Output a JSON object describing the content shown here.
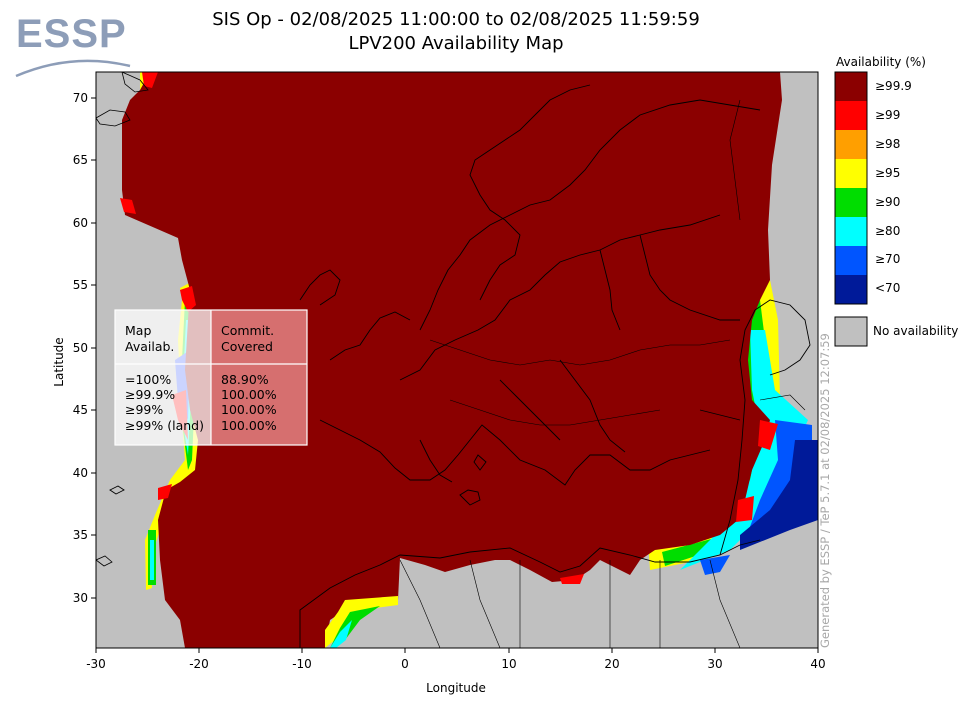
{
  "logo": {
    "text": "ESSP"
  },
  "title": {
    "line1": "SIS Op - 02/08/2025 11:00:00 to 02/08/2025 11:59:59",
    "line2": "LPV200 Availability Map"
  },
  "axes": {
    "x_label": "Longitude",
    "y_label": "Latitude",
    "x_ticks": [
      "-30",
      "-20",
      "-10",
      "0",
      "10",
      "20",
      "30",
      "40"
    ],
    "y_ticks": [
      "70",
      "65",
      "60",
      "55",
      "50",
      "45",
      "40",
      "35",
      "30"
    ],
    "x_range": [
      -30,
      40
    ],
    "y_range": [
      26,
      72
    ]
  },
  "legend": {
    "title": "Availability (%)",
    "items": [
      {
        "label": "≥99.9",
        "color": "#8b0000"
      },
      {
        "label": "≥99",
        "color": "#ff0000"
      },
      {
        "label": "≥98",
        "color": "#ff9f00"
      },
      {
        "label": "≥95",
        "color": "#ffff00"
      },
      {
        "label": "≥90",
        "color": "#00dd00"
      },
      {
        "label": "≥80",
        "color": "#00ffff"
      },
      {
        "label": "≥70",
        "color": "#0055ff"
      },
      {
        "label": "<70",
        "color": "#001a99"
      }
    ],
    "no_availability": {
      "label": "No availability",
      "color": "#c0c0c0"
    }
  },
  "stats_table": {
    "col1_header": "Map\nAvailab.",
    "col2_header": "Commit.\nCovered",
    "rows": [
      {
        "availability": "=100%",
        "covered": "88.90%"
      },
      {
        "availability": "≥99.9%",
        "covered": "100.00%"
      },
      {
        "availability": "≥99%",
        "covered": "100.00%"
      },
      {
        "availability": "≥99% (land)",
        "covered": "100.00%"
      }
    ]
  },
  "credit": "Generated by ESSP / TeP 5.7.1 at 02/08/2025 12:07:59",
  "colors": {
    "full_availability": "#8b0000",
    "no_availability": "#c0c0c0",
    "coast": "#000000"
  }
}
